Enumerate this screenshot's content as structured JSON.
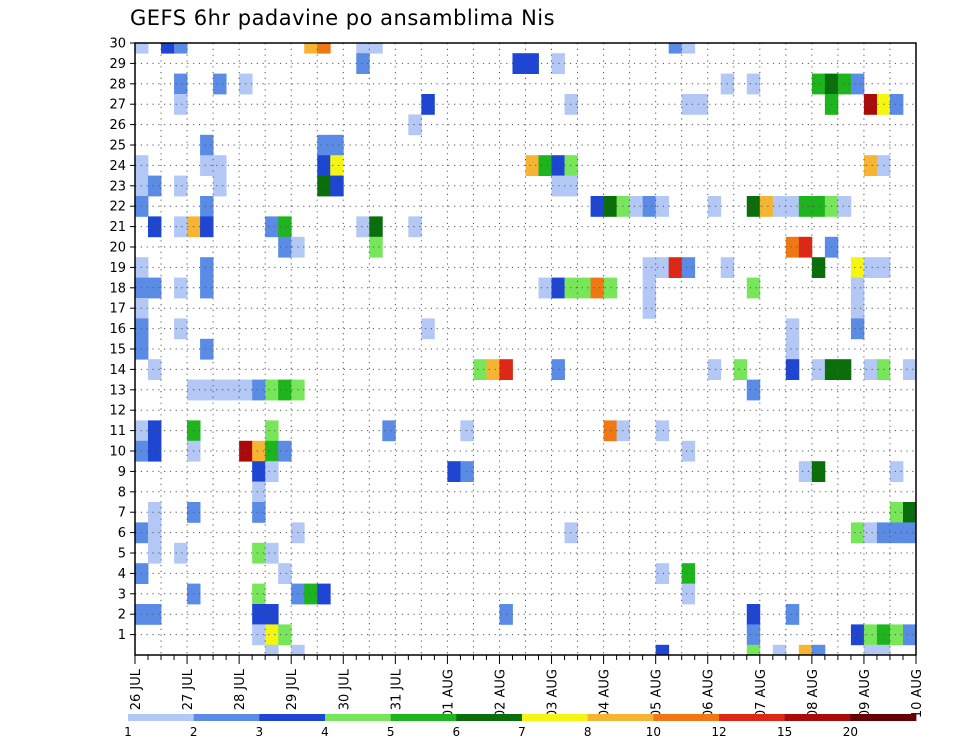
{
  "title": "GEFS 6hr padavine po ansamblima Nis",
  "chart_data": {
    "type": "heatmap",
    "title": "GEFS 6hr padavine po ansamblima Nis",
    "y_ticks": [
      1,
      2,
      3,
      4,
      5,
      6,
      7,
      8,
      9,
      10,
      11,
      12,
      13,
      14,
      15,
      16,
      17,
      18,
      19,
      20,
      21,
      22,
      23,
      24,
      25,
      26,
      27,
      28,
      29,
      30
    ],
    "ylim": [
      0,
      30
    ],
    "x_ticks": [
      "26 JUL",
      "27 JUL",
      "28 JUL",
      "29 JUL",
      "30 JUL",
      "31 JUL",
      "01 AUG",
      "02 AUG",
      "03 AUG",
      "04 AUG",
      "05 AUG",
      "06 AUG",
      "07 AUG",
      "08 AUG",
      "09 AUG",
      "10 AUG"
    ],
    "x_step_hours": 6,
    "grid": true,
    "colorbar": {
      "labels": [
        "1",
        "2",
        "3",
        "4",
        "5",
        "6",
        "7",
        "8",
        "10",
        "12",
        "15",
        "20"
      ],
      "colors": [
        "#b4c8f5",
        "#5a8ce6",
        "#1e46d2",
        "#78e65a",
        "#1eb41e",
        "#0a6e0a",
        "#f5f514",
        "#f5b432",
        "#f07814",
        "#dc2814",
        "#aa0a0a",
        "#640000"
      ]
    },
    "cells": [
      [
        30,
        0,
        1
      ],
      [
        30,
        2,
        3
      ],
      [
        30,
        3,
        2
      ],
      [
        30,
        13,
        8
      ],
      [
        30,
        14,
        9
      ],
      [
        30,
        17,
        1
      ],
      [
        30,
        18,
        1
      ],
      [
        30,
        41,
        2
      ],
      [
        30,
        42,
        1
      ],
      [
        29,
        17,
        2
      ],
      [
        29,
        29,
        3
      ],
      [
        29,
        30,
        3
      ],
      [
        29,
        32,
        1
      ],
      [
        28,
        3,
        2
      ],
      [
        28,
        6,
        2
      ],
      [
        28,
        8,
        1
      ],
      [
        28,
        45,
        1
      ],
      [
        28,
        47,
        1
      ],
      [
        28,
        52,
        5
      ],
      [
        28,
        53,
        6
      ],
      [
        28,
        54,
        5
      ],
      [
        28,
        55,
        2
      ],
      [
        27,
        3,
        1
      ],
      [
        27,
        22,
        3
      ],
      [
        27,
        33,
        1
      ],
      [
        27,
        42,
        1
      ],
      [
        27,
        43,
        1
      ],
      [
        27,
        53,
        5
      ],
      [
        27,
        56,
        11
      ],
      [
        27,
        57,
        7
      ],
      [
        27,
        58,
        2
      ],
      [
        26,
        21,
        1
      ],
      [
        25,
        5,
        2
      ],
      [
        25,
        14,
        2
      ],
      [
        25,
        15,
        2
      ],
      [
        24,
        0,
        1
      ],
      [
        24,
        5,
        1
      ],
      [
        24,
        6,
        1
      ],
      [
        24,
        14,
        3
      ],
      [
        24,
        15,
        7
      ],
      [
        24,
        30,
        8
      ],
      [
        24,
        31,
        5
      ],
      [
        24,
        32,
        3
      ],
      [
        24,
        33,
        4
      ],
      [
        24,
        56,
        8
      ],
      [
        24,
        57,
        1
      ],
      [
        23,
        0,
        1
      ],
      [
        23,
        1,
        2
      ],
      [
        23,
        3,
        1
      ],
      [
        23,
        6,
        1
      ],
      [
        23,
        14,
        6
      ],
      [
        23,
        15,
        3
      ],
      [
        23,
        32,
        1
      ],
      [
        23,
        33,
        1
      ],
      [
        22,
        0,
        2
      ],
      [
        22,
        5,
        2
      ],
      [
        22,
        35,
        3
      ],
      [
        22,
        36,
        6
      ],
      [
        22,
        37,
        4
      ],
      [
        22,
        38,
        1
      ],
      [
        22,
        39,
        2
      ],
      [
        22,
        40,
        1
      ],
      [
        22,
        44,
        1
      ],
      [
        22,
        47,
        6
      ],
      [
        22,
        48,
        8
      ],
      [
        22,
        49,
        1
      ],
      [
        22,
        50,
        1
      ],
      [
        22,
        51,
        5
      ],
      [
        22,
        52,
        5
      ],
      [
        22,
        53,
        4
      ],
      [
        22,
        54,
        1
      ],
      [
        22,
        60,
        1
      ],
      [
        21,
        1,
        3
      ],
      [
        21,
        3,
        1
      ],
      [
        21,
        4,
        8
      ],
      [
        21,
        5,
        3
      ],
      [
        21,
        10,
        2
      ],
      [
        21,
        11,
        5
      ],
      [
        21,
        17,
        1
      ],
      [
        21,
        18,
        6
      ],
      [
        21,
        21,
        1
      ],
      [
        21,
        60,
        2
      ],
      [
        21,
        61,
        1
      ],
      [
        21,
        62,
        3
      ],
      [
        21,
        65,
        3
      ],
      [
        21,
        66,
        5
      ],
      [
        20,
        11,
        2
      ],
      [
        20,
        12,
        1
      ],
      [
        20,
        18,
        4
      ],
      [
        20,
        50,
        9
      ],
      [
        20,
        51,
        10
      ],
      [
        20,
        53,
        2
      ],
      [
        19,
        0,
        1
      ],
      [
        19,
        5,
        2
      ],
      [
        19,
        39,
        1
      ],
      [
        19,
        40,
        1
      ],
      [
        19,
        41,
        10
      ],
      [
        19,
        42,
        2
      ],
      [
        19,
        45,
        1
      ],
      [
        19,
        52,
        6
      ],
      [
        19,
        55,
        7
      ],
      [
        19,
        56,
        1
      ],
      [
        19,
        57,
        1
      ],
      [
        19,
        60,
        1
      ],
      [
        18,
        0,
        2
      ],
      [
        18,
        1,
        2
      ],
      [
        18,
        3,
        1
      ],
      [
        18,
        5,
        2
      ],
      [
        18,
        31,
        1
      ],
      [
        18,
        32,
        3
      ],
      [
        18,
        33,
        4
      ],
      [
        18,
        34,
        4
      ],
      [
        18,
        35,
        9
      ],
      [
        18,
        36,
        4
      ],
      [
        18,
        39,
        1
      ],
      [
        18,
        47,
        4
      ],
      [
        18,
        55,
        1
      ],
      [
        17,
        0,
        1
      ],
      [
        17,
        39,
        1
      ],
      [
        17,
        55,
        1
      ],
      [
        16,
        0,
        2
      ],
      [
        16,
        3,
        1
      ],
      [
        16,
        22,
        1
      ],
      [
        16,
        50,
        1
      ],
      [
        16,
        55,
        2
      ],
      [
        15,
        0,
        2
      ],
      [
        15,
        5,
        2
      ],
      [
        15,
        50,
        1
      ],
      [
        14,
        1,
        1
      ],
      [
        14,
        26,
        4
      ],
      [
        14,
        27,
        8
      ],
      [
        14,
        28,
        10
      ],
      [
        14,
        32,
        2
      ],
      [
        14,
        44,
        1
      ],
      [
        14,
        46,
        4
      ],
      [
        14,
        50,
        3
      ],
      [
        14,
        52,
        1
      ],
      [
        14,
        53,
        6
      ],
      [
        14,
        54,
        6
      ],
      [
        14,
        56,
        1
      ],
      [
        14,
        57,
        4
      ],
      [
        14,
        59,
        1
      ],
      [
        14,
        61,
        1
      ],
      [
        14,
        62,
        3
      ],
      [
        13,
        4,
        1
      ],
      [
        13,
        5,
        1
      ],
      [
        13,
        6,
        1
      ],
      [
        13,
        7,
        1
      ],
      [
        13,
        8,
        1
      ],
      [
        13,
        9,
        2
      ],
      [
        13,
        10,
        4
      ],
      [
        13,
        11,
        5
      ],
      [
        13,
        12,
        4
      ],
      [
        13,
        47,
        2
      ],
      [
        11,
        0,
        1
      ],
      [
        11,
        1,
        3
      ],
      [
        11,
        4,
        5
      ],
      [
        11,
        10,
        4
      ],
      [
        11,
        19,
        2
      ],
      [
        11,
        25,
        1
      ],
      [
        11,
        36,
        9
      ],
      [
        11,
        37,
        1
      ],
      [
        11,
        40,
        1
      ],
      [
        10,
        0,
        2
      ],
      [
        10,
        1,
        3
      ],
      [
        10,
        4,
        1
      ],
      [
        10,
        8,
        11
      ],
      [
        10,
        9,
        8
      ],
      [
        10,
        10,
        5
      ],
      [
        10,
        11,
        2
      ],
      [
        10,
        42,
        1
      ],
      [
        9,
        9,
        3
      ],
      [
        9,
        10,
        1
      ],
      [
        9,
        24,
        3
      ],
      [
        9,
        25,
        2
      ],
      [
        9,
        51,
        1
      ],
      [
        9,
        52,
        6
      ],
      [
        9,
        58,
        1
      ],
      [
        8,
        9,
        1
      ],
      [
        7,
        1,
        1
      ],
      [
        7,
        4,
        2
      ],
      [
        7,
        9,
        2
      ],
      [
        7,
        58,
        4
      ],
      [
        7,
        59,
        6
      ],
      [
        7,
        62,
        5
      ],
      [
        7,
        63,
        6
      ],
      [
        7,
        64,
        1
      ],
      [
        6,
        0,
        2
      ],
      [
        6,
        1,
        1
      ],
      [
        6,
        12,
        1
      ],
      [
        6,
        33,
        1
      ],
      [
        6,
        55,
        4
      ],
      [
        6,
        56,
        1
      ],
      [
        6,
        57,
        2
      ],
      [
        6,
        58,
        2
      ],
      [
        6,
        59,
        2
      ],
      [
        5,
        1,
        1
      ],
      [
        5,
        3,
        1
      ],
      [
        5,
        9,
        4
      ],
      [
        5,
        10,
        1
      ],
      [
        4,
        0,
        2
      ],
      [
        4,
        11,
        1
      ],
      [
        4,
        40,
        1
      ],
      [
        4,
        42,
        5
      ],
      [
        3,
        4,
        2
      ],
      [
        3,
        9,
        4
      ],
      [
        3,
        12,
        2
      ],
      [
        3,
        13,
        5
      ],
      [
        3,
        14,
        3
      ],
      [
        3,
        42,
        1
      ],
      [
        2,
        0,
        2
      ],
      [
        2,
        1,
        2
      ],
      [
        2,
        9,
        3
      ],
      [
        2,
        10,
        3
      ],
      [
        2,
        28,
        2
      ],
      [
        2,
        47,
        3
      ],
      [
        2,
        50,
        2
      ],
      [
        1,
        9,
        1
      ],
      [
        1,
        10,
        7
      ],
      [
        1,
        11,
        4
      ],
      [
        1,
        47,
        2
      ],
      [
        1,
        55,
        3
      ],
      [
        1,
        56,
        4
      ],
      [
        1,
        57,
        5
      ],
      [
        1,
        58,
        4
      ],
      [
        1,
        59,
        2
      ],
      [
        1,
        60,
        1
      ],
      [
        0,
        10,
        1
      ],
      [
        0,
        12,
        1
      ],
      [
        0,
        40,
        3
      ],
      [
        0,
        47,
        4
      ],
      [
        0,
        49,
        1
      ],
      [
        0,
        51,
        8
      ],
      [
        0,
        52,
        2
      ],
      [
        0,
        56,
        1
      ],
      [
        0,
        57,
        1
      ]
    ]
  }
}
